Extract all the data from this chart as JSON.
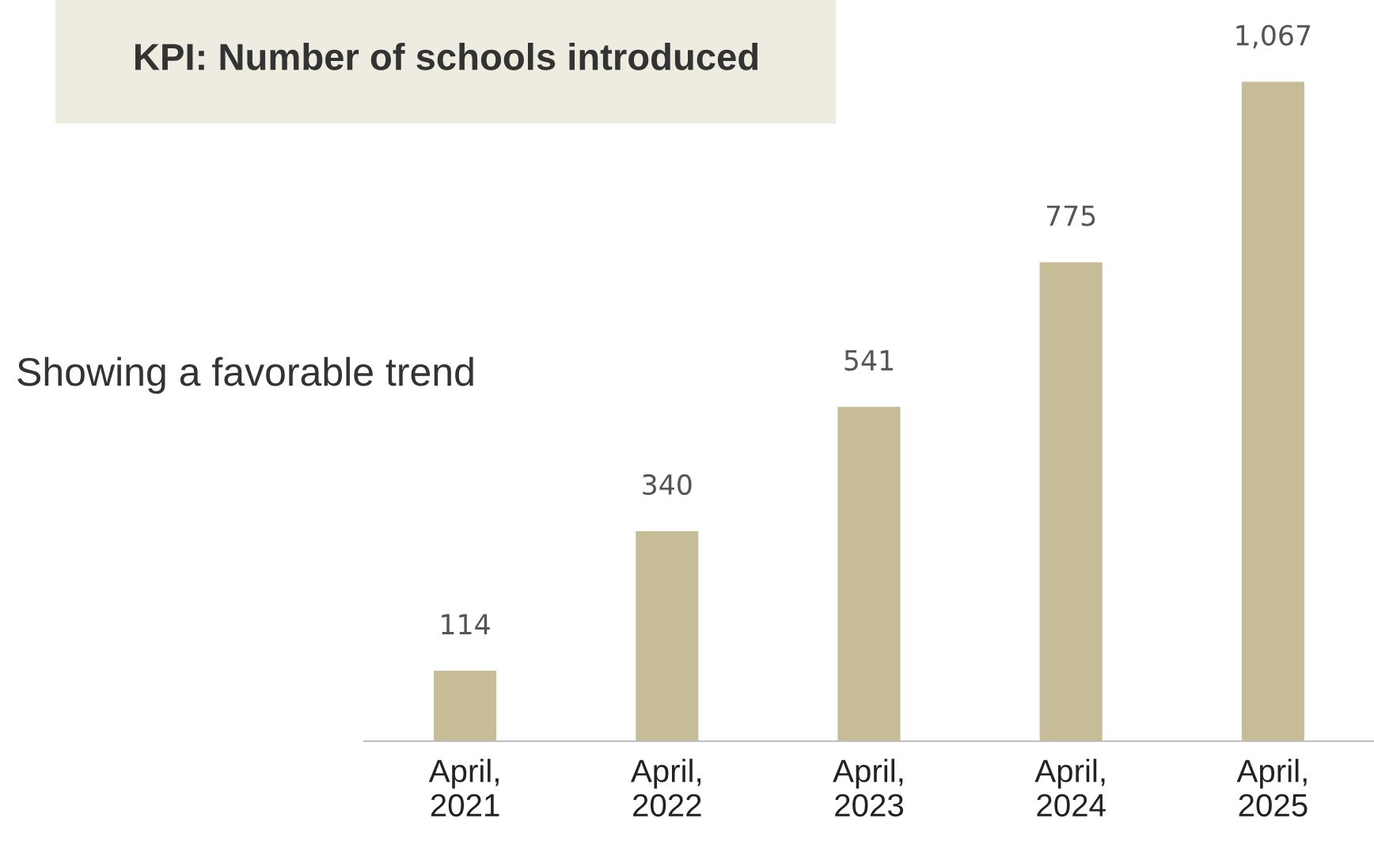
{
  "chart_data": {
    "type": "bar",
    "title": "KPI: Number of schools introduced",
    "subtitle": "Showing a favorable trend",
    "categories": [
      "April,\n2021",
      "April,\n2022",
      "April,\n2023",
      "April,\n2024",
      "April,\n2025"
    ],
    "values": [
      114,
      340,
      541,
      775,
      1067
    ],
    "value_labels": [
      "114",
      "340",
      "541",
      "775",
      "1,067"
    ],
    "color": "#c6bd98"
  }
}
